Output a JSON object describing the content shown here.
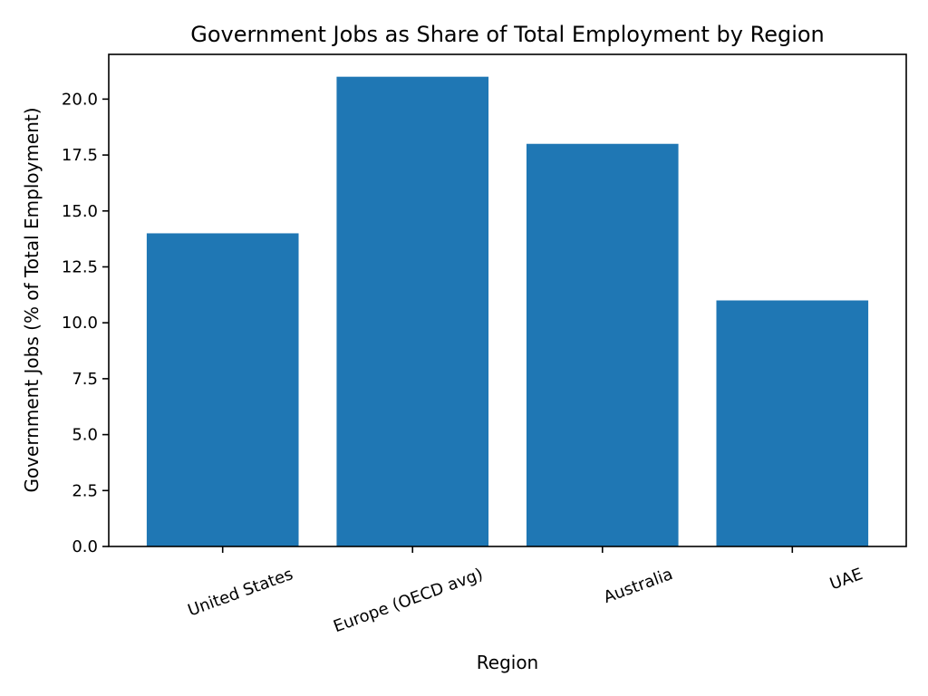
{
  "chart_data": {
    "type": "bar",
    "title": "Government Jobs as Share of Total Employment by Region",
    "xlabel": "Region",
    "ylabel": "Government Jobs (% of Total Employment)",
    "categories": [
      "United States",
      "Europe (OECD avg)",
      "Australia",
      "UAE"
    ],
    "values": [
      14,
      21,
      18,
      11
    ],
    "ylim": [
      0,
      22
    ],
    "yticks": [
      0.0,
      2.5,
      5.0,
      7.5,
      10.0,
      12.5,
      15.0,
      17.5,
      20.0
    ],
    "ytick_labels": [
      "0.0",
      "2.5",
      "5.0",
      "7.5",
      "10.0",
      "12.5",
      "15.0",
      "17.5",
      "20.0"
    ],
    "bar_color": "#1f77b4",
    "grid": false,
    "xtick_rotation_deg": -20
  }
}
